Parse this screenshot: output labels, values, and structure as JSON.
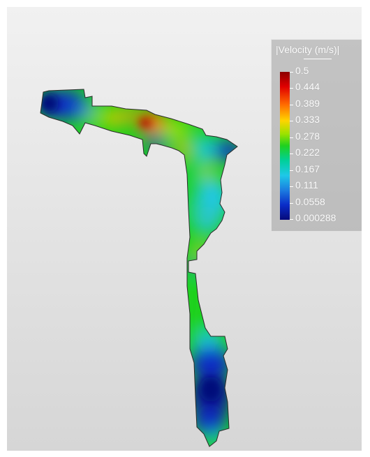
{
  "legend": {
    "title": "|Velocity (m/s)|",
    "ticks": [
      "0.5",
      "0.444",
      "0.389",
      "0.333",
      "0.278",
      "0.222",
      "0.167",
      "0.111",
      "0.0558",
      "0.000288"
    ],
    "colormap": "rainbow",
    "placement": "top-right"
  },
  "colors": {
    "max": "#8b0000",
    "high": "#ff3b00",
    "mid_high": "#ffd400",
    "mid": "#1fd11f",
    "mid_low": "#1ec8e8",
    "low": "#0a2cc8",
    "min": "#060a7a",
    "background_top": "#f1f1f1",
    "background_bottom": "#d6d6d6"
  }
}
